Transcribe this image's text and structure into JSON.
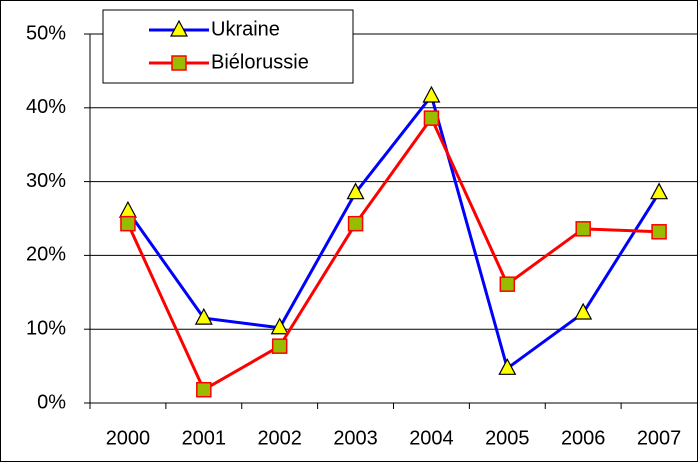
{
  "chart_data": {
    "type": "line",
    "categories": [
      "2000",
      "2001",
      "2002",
      "2003",
      "2004",
      "2005",
      "2006",
      "2007"
    ],
    "series": [
      {
        "name": "Ukraine",
        "color": "#0000ff",
        "marker": "triangle",
        "marker_color": "#ffff00",
        "values": [
          26,
          11.5,
          10.2,
          28.5,
          41.6,
          4.7,
          12.2,
          28.5
        ]
      },
      {
        "name": "Biélorussie",
        "color": "#ff0000",
        "marker": "square",
        "marker_color": "#99bb00",
        "values": [
          24.3,
          1.8,
          7.7,
          24.3,
          38.6,
          16.1,
          23.6,
          23.2
        ]
      }
    ],
    "ylim": [
      0,
      50
    ],
    "yticks": [
      {
        "value": 0,
        "label": "0%"
      },
      {
        "value": 10,
        "label": "10%"
      },
      {
        "value": 20,
        "label": "20%"
      },
      {
        "value": 30,
        "label": "30%"
      },
      {
        "value": 40,
        "label": "40%"
      },
      {
        "value": 50,
        "label": "50%"
      }
    ],
    "grid": true,
    "legend": "top-left"
  }
}
